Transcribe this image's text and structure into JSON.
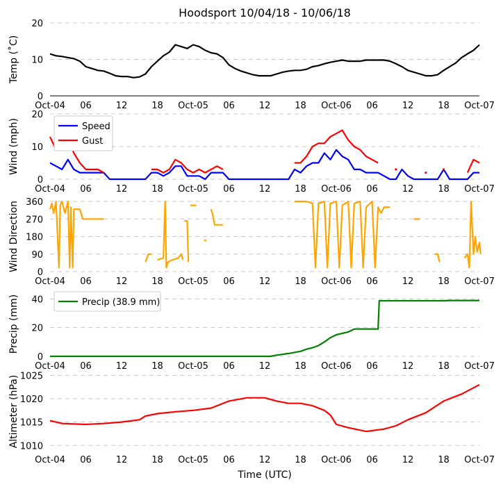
{
  "chart_data": [
    {
      "type": "line",
      "title": "Hoodsport 10/04/18 - 10/06/18",
      "ylabel": "Temp ($^\\circ$C)",
      "ylabel_display": "Temp (˚C)",
      "ylim": [
        0,
        20
      ],
      "yticks": [
        0,
        10,
        20
      ],
      "grid": true,
      "series": [
        {
          "name": "Temp",
          "color": "#000000",
          "x_hours": [
            0,
            1,
            2,
            3,
            4,
            5,
            6,
            7,
            8,
            9,
            10,
            11,
            12,
            13,
            14,
            15,
            16,
            17,
            18,
            19,
            20,
            21,
            22,
            23,
            24,
            25,
            26,
            27,
            28,
            29,
            30,
            31,
            32,
            33,
            34,
            35,
            36,
            37,
            38,
            39,
            40,
            41,
            42,
            43,
            44,
            45,
            46,
            47,
            48,
            49,
            50,
            51,
            52,
            53,
            54,
            55,
            56,
            57,
            58,
            59,
            60,
            61,
            62,
            63,
            64,
            65,
            66,
            67,
            68,
            69,
            70,
            71,
            72
          ],
          "values": [
            11.5,
            11,
            10.8,
            10.5,
            10.2,
            9.5,
            8,
            7.5,
            7,
            6.8,
            6.2,
            5.5,
            5.3,
            5.3,
            5,
            5.2,
            6,
            8,
            9.5,
            11,
            12,
            14,
            13.5,
            13,
            14,
            13.5,
            12.5,
            11.8,
            11.5,
            10.5,
            8.5,
            7.5,
            6.8,
            6.3,
            5.8,
            5.5,
            5.5,
            5.5,
            6,
            6.5,
            6.8,
            7,
            7,
            7.3,
            8,
            8.3,
            8.8,
            9.2,
            9.5,
            9.8,
            9.5,
            9.5,
            9.5,
            9.8,
            9.8,
            9.8,
            9.8,
            9.5,
            8.8,
            8,
            7,
            6.5,
            6,
            5.5,
            5.5,
            5.8,
            7,
            8,
            9,
            10.5,
            11.5,
            12.5,
            14
          ]
        }
      ]
    },
    {
      "type": "line",
      "ylabel": "Wind (mph)",
      "ylim": [
        0,
        20
      ],
      "yticks": [
        0,
        10,
        20
      ],
      "grid": true,
      "legend": "top-left",
      "series": [
        {
          "name": "Speed",
          "color": "#0000ff",
          "values": [
            5,
            4,
            3,
            6,
            3,
            2,
            2,
            2,
            2,
            2,
            0,
            0,
            0,
            0,
            0,
            0,
            0,
            2,
            2,
            1,
            2,
            4,
            4,
            1,
            1,
            1,
            0,
            2,
            2,
            2,
            0,
            0,
            0,
            0,
            0,
            0,
            0,
            0,
            0,
            0,
            0,
            3,
            2,
            4,
            5,
            5,
            8,
            6,
            9,
            7,
            6,
            3,
            3,
            2,
            2,
            2,
            1,
            0,
            0,
            3,
            1,
            0,
            0,
            0,
            0,
            0,
            3,
            0,
            0,
            0,
            0,
            2,
            2
          ]
        },
        {
          "name": "Gust",
          "color": "#ff0000",
          "values": [
            13,
            9,
            10,
            12,
            8,
            5,
            3,
            3,
            3,
            2,
            null,
            null,
            null,
            null,
            null,
            null,
            null,
            3,
            3,
            2,
            3,
            6,
            5,
            3,
            2,
            3,
            2,
            3,
            4,
            3,
            null,
            null,
            null,
            null,
            null,
            null,
            null,
            null,
            null,
            null,
            null,
            5,
            5,
            7,
            10,
            11,
            11,
            13,
            14,
            15,
            12,
            10,
            9,
            7,
            6,
            5,
            null,
            null,
            3,
            null,
            null,
            null,
            null,
            2,
            null,
            null,
            3,
            null,
            null,
            null,
            2,
            6,
            5
          ]
        }
      ]
    },
    {
      "type": "line",
      "ylabel": "Wind Direction",
      "ylim": [
        0,
        360
      ],
      "yticks": [
        0,
        90,
        180,
        270,
        360
      ],
      "grid": true,
      "series": [
        {
          "name": "Direction",
          "color": "#ffa500",
          "points": [
            [
              0,
              320
            ],
            [
              0.3,
              350
            ],
            [
              0.6,
              300
            ],
            [
              1,
              360
            ],
            [
              1.5,
              20
            ],
            [
              1.7,
              340
            ],
            [
              2,
              360
            ],
            [
              2.5,
              300
            ],
            [
              3,
              360
            ],
            [
              3.3,
              20
            ],
            [
              3.5,
              330
            ],
            [
              3.8,
              20
            ],
            [
              4,
              320
            ],
            [
              5,
              320
            ],
            [
              5.5,
              270
            ],
            [
              9,
              270
            ],
            null,
            [
              16,
              50
            ],
            [
              16.5,
              90
            ],
            [
              17,
              90
            ],
            null,
            [
              18,
              60
            ],
            [
              19,
              70
            ],
            [
              19.3,
              360
            ],
            [
              19.5,
              20
            ],
            [
              19.8,
              50
            ],
            [
              20.5,
              60
            ],
            [
              21.5,
              70
            ],
            [
              22,
              90
            ],
            [
              22.3,
              60
            ],
            null,
            [
              22.5,
              260
            ],
            [
              23,
              260
            ],
            [
              23.2,
              50
            ],
            null,
            [
              23.5,
              340
            ],
            [
              24.5,
              340
            ],
            null,
            [
              26,
              160
            ],
            null,
            [
              27,
              320
            ],
            [
              27.3,
              290
            ],
            [
              27.6,
              240
            ],
            [
              29,
              240
            ],
            null,
            [
              41,
              360
            ],
            [
              43,
              360
            ],
            [
              44,
              350
            ],
            [
              44.5,
              20
            ],
            [
              45,
              350
            ],
            [
              46,
              360
            ],
            [
              46.5,
              20
            ],
            [
              47,
              350
            ],
            [
              48,
              360
            ],
            [
              48.5,
              20
            ],
            [
              49,
              340
            ],
            [
              50,
              360
            ],
            [
              50.5,
              20
            ],
            [
              51,
              350
            ],
            [
              52,
              360
            ],
            [
              52.5,
              20
            ],
            [
              53,
              330
            ],
            [
              54,
              360
            ],
            [
              54.5,
              20
            ],
            [
              55,
              330
            ],
            [
              55.5,
              300
            ],
            [
              56,
              330
            ],
            [
              57,
              330
            ],
            null,
            [
              61,
              270
            ],
            [
              62,
              270
            ],
            null,
            [
              64.5,
              90
            ],
            [
              65,
              90
            ],
            [
              65.3,
              50
            ],
            null,
            [
              69.5,
              70
            ],
            [
              70,
              90
            ],
            [
              70.3,
              20
            ],
            [
              70.6,
              360
            ],
            [
              71,
              90
            ],
            [
              71.3,
              180
            ],
            [
              71.6,
              100
            ],
            [
              72,
              150
            ],
            [
              72.2,
              90
            ]
          ]
        }
      ]
    },
    {
      "type": "line",
      "ylabel": "Precip (mm)",
      "ylim": [
        0,
        45
      ],
      "yticks": [
        0,
        20,
        40
      ],
      "grid": true,
      "legend": "top-left",
      "series": [
        {
          "name": "Precip (38.9 mm)",
          "color": "#008000",
          "points": [
            [
              0,
              0
            ],
            [
              37,
              0
            ],
            [
              38,
              0.8
            ],
            [
              40,
              2
            ],
            [
              42,
              3.5
            ],
            [
              43,
              5
            ],
            [
              44,
              6
            ],
            [
              45,
              7.5
            ],
            [
              46,
              10
            ],
            [
              47,
              13
            ],
            [
              48,
              15
            ],
            [
              49,
              16
            ],
            [
              50,
              17
            ],
            [
              51,
              19
            ],
            [
              55,
              19
            ],
            [
              55.2,
              38.7
            ],
            [
              66,
              38.7
            ],
            [
              67,
              38.9
            ],
            [
              72,
              38.9
            ]
          ]
        }
      ]
    },
    {
      "type": "line",
      "ylabel": "Altimeter (hPa)",
      "xlabel": "Time (UTC)",
      "ylim": [
        1009,
        1025.5
      ],
      "yticks": [
        1010,
        1015,
        1020,
        1025
      ],
      "grid": true,
      "series": [
        {
          "name": "Altimeter",
          "color": "#ff0000",
          "points": [
            [
              0,
              1015.3
            ],
            [
              2,
              1014.7
            ],
            [
              6,
              1014.5
            ],
            [
              9,
              1014.7
            ],
            [
              12,
              1015
            ],
            [
              15,
              1015.5
            ],
            [
              16,
              1016.3
            ],
            [
              18,
              1016.8
            ],
            [
              21,
              1017.2
            ],
            [
              24,
              1017.5
            ],
            [
              27,
              1018
            ],
            [
              30,
              1019.5
            ],
            [
              33,
              1020.2
            ],
            [
              36,
              1020.2
            ],
            [
              38,
              1019.5
            ],
            [
              40,
              1019
            ],
            [
              42,
              1019
            ],
            [
              44,
              1018.5
            ],
            [
              46,
              1017.5
            ],
            [
              47,
              1016.5
            ],
            [
              48,
              1014.5
            ],
            [
              50,
              1013.8
            ],
            [
              53,
              1013
            ],
            [
              56,
              1013.5
            ],
            [
              58,
              1014.2
            ],
            [
              60,
              1015.5
            ],
            [
              63,
              1017
            ],
            [
              66,
              1019.5
            ],
            [
              69,
              1021
            ],
            [
              72,
              1023
            ]
          ]
        }
      ]
    }
  ],
  "x_axis": {
    "range_hours": [
      0,
      72
    ],
    "tick_hours": [
      0,
      6,
      12,
      18,
      24,
      30,
      36,
      42,
      48,
      54,
      60,
      66,
      72
    ],
    "tick_labels": [
      "Oct-04",
      "06",
      "12",
      "18",
      "Oct-05",
      "06",
      "12",
      "18",
      "Oct-06",
      "06",
      "12",
      "18",
      "Oct-07"
    ]
  }
}
